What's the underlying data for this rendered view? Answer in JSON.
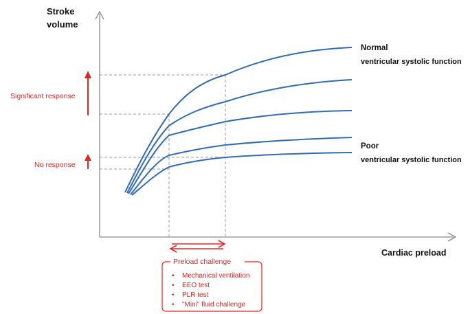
{
  "axes": {
    "y_label_line1": "Stroke",
    "y_label_line2": "volume",
    "x_label": "Cardiac preload"
  },
  "curve_labels": {
    "normal_line1": "Normal",
    "normal_line2": "ventricular systolic function",
    "poor_line1": "Poor",
    "poor_line2": "ventricular systolic function"
  },
  "responses": {
    "significant": "Significant response",
    "none": "No response"
  },
  "preload_box": {
    "title": "Preload challenge",
    "items": [
      "Mechanical ventilation",
      "EEO test",
      "PLR test",
      "\"Mini\" fluid challenge"
    ]
  },
  "colors": {
    "curve": "#2f6bb5",
    "accent": "#e8231e",
    "axis": "#888888",
    "guide": "#999999"
  }
}
